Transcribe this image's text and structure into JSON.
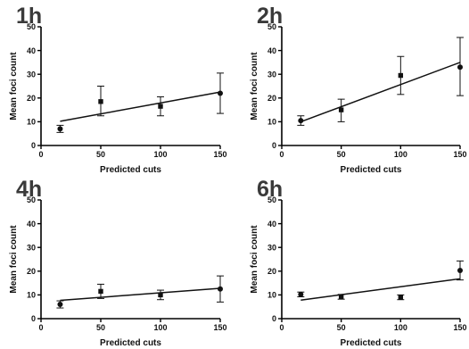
{
  "chart_data": [
    {
      "type": "scatter",
      "title": "1h",
      "xlabel": "Predicted cuts",
      "ylabel": "Mean foci count",
      "xlim": [
        0,
        150
      ],
      "ylim": [
        0,
        50
      ],
      "xticks": [
        0,
        50,
        100,
        150
      ],
      "yticks": [
        0,
        10,
        20,
        30,
        40,
        50
      ],
      "x_tick_labels": [
        "0",
        "50",
        "100",
        "150"
      ],
      "y_tick_labels": [
        "0",
        "10",
        "20",
        "30",
        "40",
        "50"
      ],
      "points": [
        {
          "x": 16,
          "y": 7,
          "err_low": 5.5,
          "err_high": 8.5,
          "marker": "circle"
        },
        {
          "x": 50,
          "y": 18.5,
          "err_low": 12.5,
          "err_high": 25,
          "marker": "square"
        },
        {
          "x": 100,
          "y": 16.5,
          "err_low": 12.5,
          "err_high": 20.5,
          "marker": "square"
        },
        {
          "x": 150,
          "y": 22,
          "err_low": 13.5,
          "err_high": 30.5,
          "marker": "circle"
        }
      ],
      "fit_line": {
        "x": [
          16,
          150
        ],
        "y": [
          10.2,
          22.5
        ]
      },
      "grid": false,
      "legend": "none"
    },
    {
      "type": "scatter",
      "title": "2h",
      "xlabel": "Predicted cuts",
      "ylabel": "Mean foci count",
      "xlim": [
        0,
        150
      ],
      "ylim": [
        0,
        50
      ],
      "xticks": [
        0,
        50,
        100,
        150
      ],
      "yticks": [
        0,
        10,
        20,
        30,
        40,
        50
      ],
      "x_tick_labels": [
        "0",
        "50",
        "100",
        "150"
      ],
      "y_tick_labels": [
        "0",
        "10",
        "20",
        "30",
        "40",
        "50"
      ],
      "points": [
        {
          "x": 16,
          "y": 10.5,
          "err_low": 8.5,
          "err_high": 12.5,
          "marker": "circle"
        },
        {
          "x": 50,
          "y": 15,
          "err_low": 10,
          "err_high": 19.5,
          "marker": "square"
        },
        {
          "x": 100,
          "y": 29.5,
          "err_low": 21.5,
          "err_high": 37.5,
          "marker": "square"
        },
        {
          "x": 150,
          "y": 33,
          "err_low": 21,
          "err_high": 45.5,
          "marker": "circle"
        }
      ],
      "fit_line": {
        "x": [
          16,
          150
        ],
        "y": [
          10,
          35
        ]
      },
      "grid": false,
      "legend": "none"
    },
    {
      "type": "scatter",
      "title": "4h",
      "xlabel": "Predicted cuts",
      "ylabel": "Mean foci count",
      "xlim": [
        0,
        150
      ],
      "ylim": [
        0,
        50
      ],
      "xticks": [
        0,
        50,
        100,
        150
      ],
      "yticks": [
        0,
        10,
        20,
        30,
        40,
        50
      ],
      "x_tick_labels": [
        "0",
        "50",
        "100",
        "150"
      ],
      "y_tick_labels": [
        "0",
        "10",
        "20",
        "30",
        "40",
        "50"
      ],
      "points": [
        {
          "x": 16,
          "y": 6,
          "err_low": 4.5,
          "err_high": 7.5,
          "marker": "circle"
        },
        {
          "x": 50,
          "y": 11.5,
          "err_low": 8.5,
          "err_high": 14.5,
          "marker": "square"
        },
        {
          "x": 100,
          "y": 10,
          "err_low": 8,
          "err_high": 12,
          "marker": "square"
        },
        {
          "x": 150,
          "y": 12.5,
          "err_low": 7,
          "err_high": 18,
          "marker": "circle"
        }
      ],
      "fit_line": {
        "x": [
          16,
          150
        ],
        "y": [
          7.7,
          12.8
        ]
      },
      "grid": false,
      "legend": "none"
    },
    {
      "type": "scatter",
      "title": "6h",
      "xlabel": "Predicted cuts",
      "ylabel": "Mean foci count",
      "xlim": [
        0,
        150
      ],
      "ylim": [
        0,
        50
      ],
      "xticks": [
        0,
        50,
        100,
        150
      ],
      "yticks": [
        0,
        10,
        20,
        30,
        40,
        50
      ],
      "x_tick_labels": [
        "0",
        "50",
        "100",
        "150"
      ],
      "y_tick_labels": [
        "0",
        "10",
        "20",
        "30",
        "40",
        "50"
      ],
      "points": [
        {
          "x": 16,
          "y": 10.2,
          "err_low": 9.2,
          "err_high": 11.2,
          "marker": "circle"
        },
        {
          "x": 50,
          "y": 9.2,
          "err_low": 8.2,
          "err_high": 10.2,
          "marker": "square"
        },
        {
          "x": 100,
          "y": 9,
          "err_low": 8,
          "err_high": 10,
          "marker": "square"
        },
        {
          "x": 150,
          "y": 20.3,
          "err_low": 16.3,
          "err_high": 24.3,
          "marker": "circle"
        }
      ],
      "fit_line": {
        "x": [
          16,
          150
        ],
        "y": [
          7.8,
          16.8
        ]
      },
      "grid": false,
      "legend": "none"
    }
  ]
}
